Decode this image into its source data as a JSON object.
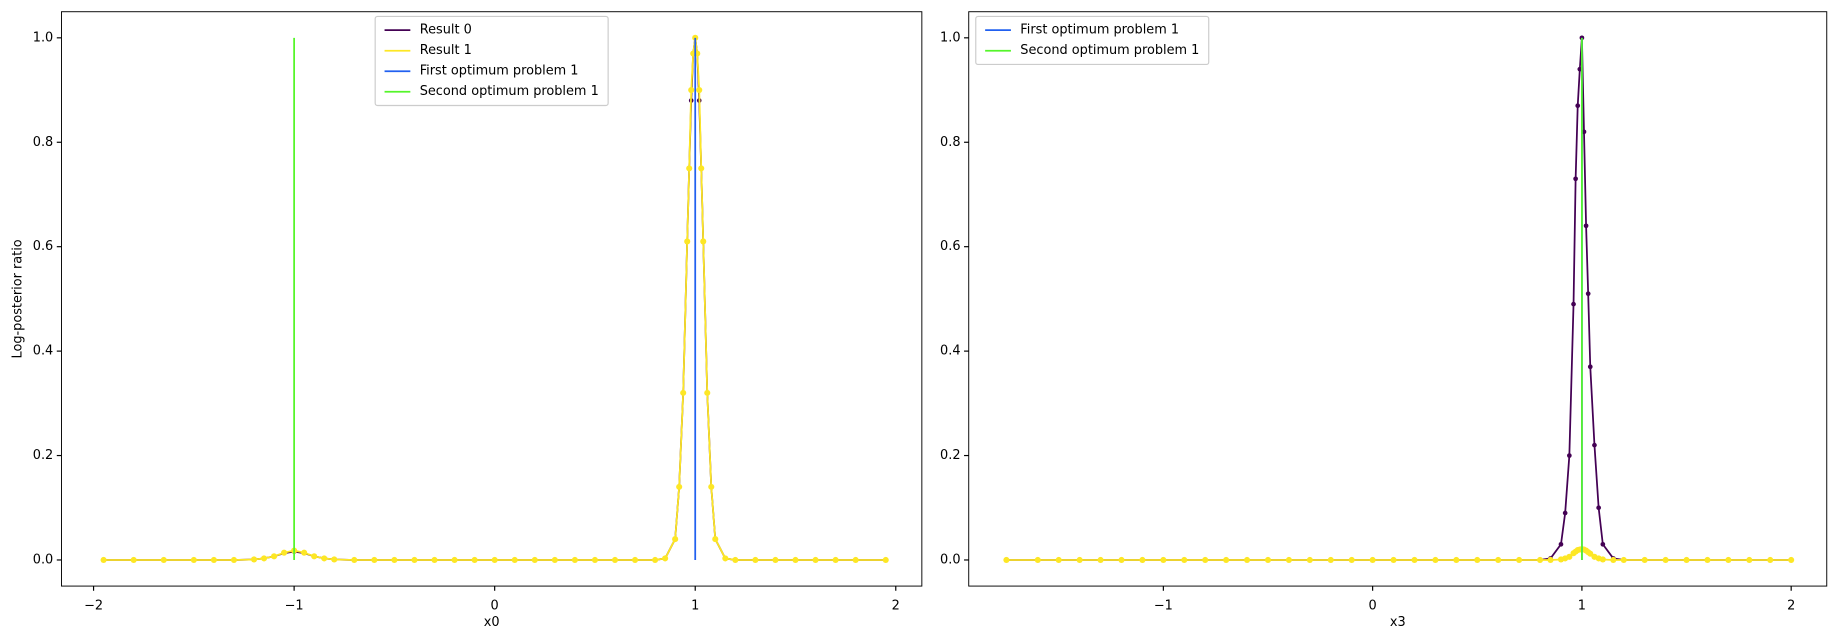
{
  "chart_data": [
    {
      "type": "line",
      "xlabel": "x0",
      "ylabel": "Log-posterior ratio",
      "legend": "upper center",
      "xlim": [
        -2.16,
        2.13
      ],
      "ylim": [
        -0.05,
        1.05
      ],
      "xticks": [
        {
          "value": -2,
          "label": "−2"
        },
        {
          "value": -1,
          "label": "−1"
        },
        0,
        1,
        2
      ],
      "yticks": [
        {
          "value": 0,
          "label": "0.0"
        },
        {
          "value": 0.2,
          "label": "0.2"
        },
        {
          "value": 0.4,
          "label": "0.4"
        },
        {
          "value": 0.6,
          "label": "0.6"
        },
        {
          "value": 0.8,
          "label": "0.8"
        },
        {
          "value": 1,
          "label": "1.0"
        }
      ],
      "series": [
        {
          "name": "Result 0",
          "color": "#440154",
          "x": [
            -1.95,
            -1.8,
            -1.65,
            -1.5,
            -1.4,
            -1.3,
            -1.2,
            -1.15,
            -1.1,
            -1.05,
            -1.0,
            -0.95,
            -0.9,
            -0.85,
            -0.8,
            -0.7,
            -0.6,
            -0.5,
            -0.4,
            -0.3,
            -0.2,
            -0.1,
            0,
            0.1,
            0.2,
            0.3,
            0.4,
            0.5,
            0.6,
            0.7,
            0.8,
            0.85,
            0.9,
            0.92,
            0.94,
            0.96,
            0.97,
            0.98,
            0.99,
            1.0,
            1.01,
            1.02,
            1.03,
            1.04,
            1.06,
            1.08,
            1.1,
            1.15,
            1.2,
            1.3,
            1.4,
            1.5,
            1.6,
            1.7,
            1.8,
            1.95
          ],
          "values": [
            0,
            0,
            0,
            0,
            0,
            0,
            0.001,
            0.003,
            0.007,
            0.013,
            0.016,
            0.013,
            0.007,
            0.003,
            0.001,
            0,
            0,
            0,
            0,
            0,
            0,
            0,
            0,
            0,
            0,
            0,
            0,
            0,
            0,
            0,
            0,
            0.003,
            0.04,
            0.14,
            0.32,
            0.61,
            0.75,
            0.88,
            0.97,
            1.0,
            0.97,
            0.88,
            0.75,
            0.61,
            0.32,
            0.14,
            0.04,
            0.003,
            0,
            0,
            0,
            0,
            0,
            0,
            0,
            0
          ]
        },
        {
          "name": "Result 1",
          "color": "#fde725",
          "x": [
            -1.95,
            -1.8,
            -1.65,
            -1.5,
            -1.4,
            -1.3,
            -1.2,
            -1.15,
            -1.1,
            -1.05,
            -1.0,
            -0.95,
            -0.9,
            -0.85,
            -0.8,
            -0.7,
            -0.6,
            -0.5,
            -0.4,
            -0.3,
            -0.2,
            -0.1,
            0,
            0.1,
            0.2,
            0.3,
            0.4,
            0.5,
            0.6,
            0.7,
            0.8,
            0.85,
            0.9,
            0.92,
            0.94,
            0.96,
            0.97,
            0.98,
            0.99,
            1.0,
            1.01,
            1.02,
            1.03,
            1.04,
            1.06,
            1.08,
            1.1,
            1.15,
            1.2,
            1.3,
            1.4,
            1.5,
            1.6,
            1.7,
            1.8,
            1.95
          ],
          "values": [
            0,
            0,
            0,
            0,
            0,
            0,
            0.001,
            0.003,
            0.007,
            0.014,
            0.018,
            0.014,
            0.007,
            0.003,
            0.001,
            0,
            0,
            0,
            0,
            0,
            0,
            0,
            0,
            0,
            0,
            0,
            0,
            0,
            0,
            0,
            0,
            0.003,
            0.04,
            0.14,
            0.32,
            0.61,
            0.75,
            0.9,
            0.97,
            1.0,
            0.97,
            0.9,
            0.75,
            0.61,
            0.32,
            0.14,
            0.04,
            0.003,
            0,
            0,
            0,
            0,
            0,
            0,
            0,
            0
          ]
        }
      ],
      "vlines": [
        {
          "name": "First optimum problem 1",
          "color": "#2160f0",
          "x": 1,
          "ymin": 0,
          "ymax": 1
        },
        {
          "name": "Second optimum problem 1",
          "color": "#55f52a",
          "x": -1,
          "ymin": 0,
          "ymax": 1
        }
      ]
    },
    {
      "type": "line",
      "xlabel": "x3",
      "legend": "upper left",
      "xlim": [
        -1.93,
        2.17
      ],
      "ylim": [
        -0.05,
        1.05
      ],
      "xticks": [
        {
          "value": -1,
          "label": "−1"
        },
        0,
        1,
        2
      ],
      "yticks": [
        {
          "value": 0,
          "label": "0.0"
        },
        {
          "value": 0.2,
          "label": "0.2"
        },
        {
          "value": 0.4,
          "label": "0.4"
        },
        {
          "value": 0.6,
          "label": "0.6"
        },
        {
          "value": 0.8,
          "label": "0.8"
        },
        {
          "value": 1,
          "label": "1.0"
        }
      ],
      "series": [
        {
          "color": "#440154",
          "x": [
            -1.75,
            -1.6,
            -1.5,
            -1.4,
            -1.3,
            -1.2,
            -1.1,
            -1.0,
            -0.9,
            -0.8,
            -0.7,
            -0.6,
            -0.5,
            -0.4,
            -0.3,
            -0.2,
            -0.1,
            0,
            0.1,
            0.2,
            0.3,
            0.4,
            0.5,
            0.6,
            0.7,
            0.8,
            0.85,
            0.9,
            0.92,
            0.94,
            0.96,
            0.97,
            0.98,
            0.99,
            1.0,
            1.01,
            1.02,
            1.03,
            1.04,
            1.06,
            1.08,
            1.1,
            1.15,
            1.2,
            1.3,
            1.4,
            1.5,
            1.6,
            1.7,
            1.8,
            1.9,
            2.0
          ],
          "values": [
            0,
            0,
            0,
            0,
            0,
            0,
            0,
            0,
            0,
            0,
            0,
            0,
            0,
            0,
            0,
            0,
            0,
            0,
            0,
            0,
            0,
            0,
            0,
            0,
            0,
            0,
            0.003,
            0.03,
            0.09,
            0.2,
            0.49,
            0.73,
            0.87,
            0.94,
            1.0,
            0.82,
            0.64,
            0.51,
            0.37,
            0.22,
            0.1,
            0.03,
            0.003,
            0,
            0,
            0,
            0,
            0,
            0,
            0,
            0,
            0
          ]
        },
        {
          "color": "#fde725",
          "x": [
            -1.75,
            -1.6,
            -1.5,
            -1.4,
            -1.3,
            -1.2,
            -1.1,
            -1.0,
            -0.9,
            -0.8,
            -0.7,
            -0.6,
            -0.5,
            -0.4,
            -0.3,
            -0.2,
            -0.1,
            0,
            0.1,
            0.2,
            0.3,
            0.4,
            0.5,
            0.6,
            0.7,
            0.8,
            0.85,
            0.9,
            0.92,
            0.94,
            0.96,
            0.97,
            0.98,
            0.99,
            1.0,
            1.01,
            1.02,
            1.03,
            1.04,
            1.06,
            1.08,
            1.1,
            1.15,
            1.2,
            1.3,
            1.4,
            1.5,
            1.6,
            1.7,
            1.8,
            1.9,
            2.0
          ],
          "values": [
            0,
            0,
            0,
            0,
            0,
            0,
            0,
            0,
            0,
            0,
            0,
            0,
            0,
            0,
            0,
            0,
            0,
            0,
            0,
            0,
            0,
            0,
            0,
            0,
            0,
            0,
            0,
            0.001,
            0.003,
            0.006,
            0.013,
            0.016,
            0.019,
            0.02,
            0.021,
            0.02,
            0.018,
            0.015,
            0.012,
            0.006,
            0.003,
            0.001,
            0,
            0,
            0,
            0,
            0,
            0,
            0,
            0,
            0,
            0
          ]
        }
      ],
      "vlines": [
        {
          "name": "First optimum problem 1",
          "color": "#2160f0",
          "x": 1,
          "ymin": 0,
          "ymax": 1
        },
        {
          "name": "Second optimum problem 1",
          "color": "#55f52a",
          "x": 1,
          "ymin": 0,
          "ymax": 1
        }
      ]
    }
  ]
}
